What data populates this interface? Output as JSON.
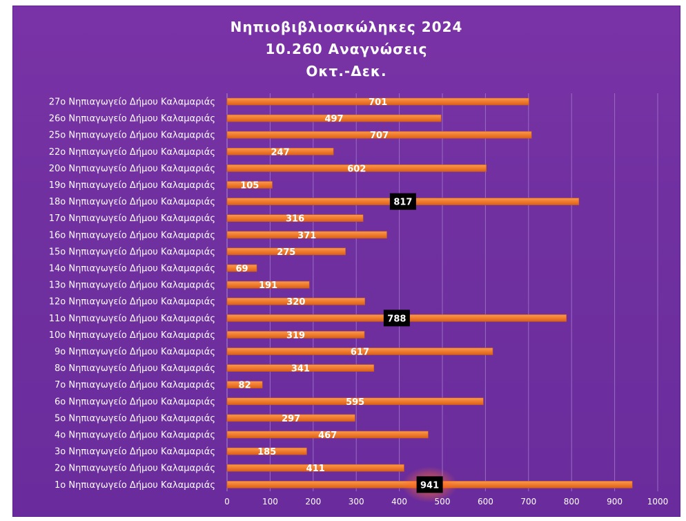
{
  "title_lines": [
    "Νηπιοβιβλιοσκώληκες 2024",
    "10.260 Αναγνώσεις",
    "Οκτ.-Δεκ."
  ],
  "colors": {
    "background": "#7030a0",
    "bar": "#f07c2e",
    "bar_dark": "#d8601a",
    "highlight_box": "#000000",
    "glow": "#ff6a2a",
    "grid": "#9a6cc4"
  },
  "chart_data": {
    "type": "bar",
    "orientation": "horizontal",
    "title": "Νηπιοβιβλιοσκώληκες 2024 10.260 Αναγνώσεις Οκτ.-Δεκ.",
    "xlim": [
      0,
      1000
    ],
    "xticks": [
      0,
      100,
      200,
      300,
      400,
      500,
      600,
      700,
      800,
      900,
      1000
    ],
    "grid": true,
    "categories": [
      "27ο Νηπιαγωγείο Δήμου Καλαμαριάς",
      "26ο Νηπιαγωγείο Δήμου Καλαμαριάς",
      "25ο Νηπιαγωγείο Δήμου Καλαμαριάς",
      "22ο Νηπιαγωγείο Δήμου Καλαμαριάς",
      "20ο Νηπιαγωγείο Δήμου Καλαμαριάς",
      "19ο Νηπιαγωγείο Δήμου Καλαμαριάς",
      "18ο Νηπιαγωγείο Δήμου Καλαμαριάς",
      "17ο Νηπιαγωγείο Δήμου Καλαμαριάς",
      "16ο Νηπιαγωγείο Δήμου Καλαμαριάς",
      "15ο Νηπιαγωγείο Δήμου Καλαμαριάς",
      "14ο Νηπιαγωγείο Δήμου Καλαμαριάς",
      "13ο Νηπιαγωγείο Δήμου Καλαμαριάς",
      "12ο Νηπιαγωγείο Δήμου Καλαμαριάς",
      "11ο Νηπιαγωγείο Δήμου Καλαμαριάς",
      "10ο Νηπιαγωγείο Δήμου Καλαμαριάς",
      "9ο Νηπιαγωγείο Δήμου Καλαμαριάς",
      "8ο Νηπιαγωγείο Δήμου Καλαμαριάς",
      "7ο Νηπιαγωγείο Δήμου Καλαμαριάς",
      "6ο Νηπιαγωγείο Δήμου Καλαμαριάς",
      "5ο Νηπιαγωγείο Δήμου Καλαμαριάς",
      "4ο Νηπιαγωγείο Δήμου Καλαμαριάς",
      "3ο Νηπιαγωγείο Δήμου Καλαμαριάς",
      "2ο Νηπιαγωγείο Δήμου Καλαμαριάς",
      "1ο Νηπιαγωγείο Δήμου Καλαμαριάς"
    ],
    "values": [
      701,
      497,
      707,
      247,
      602,
      105,
      817,
      316,
      371,
      275,
      69,
      191,
      320,
      788,
      319,
      617,
      341,
      82,
      595,
      297,
      467,
      185,
      411,
      941
    ],
    "highlighted": [
      817,
      788,
      941
    ]
  }
}
